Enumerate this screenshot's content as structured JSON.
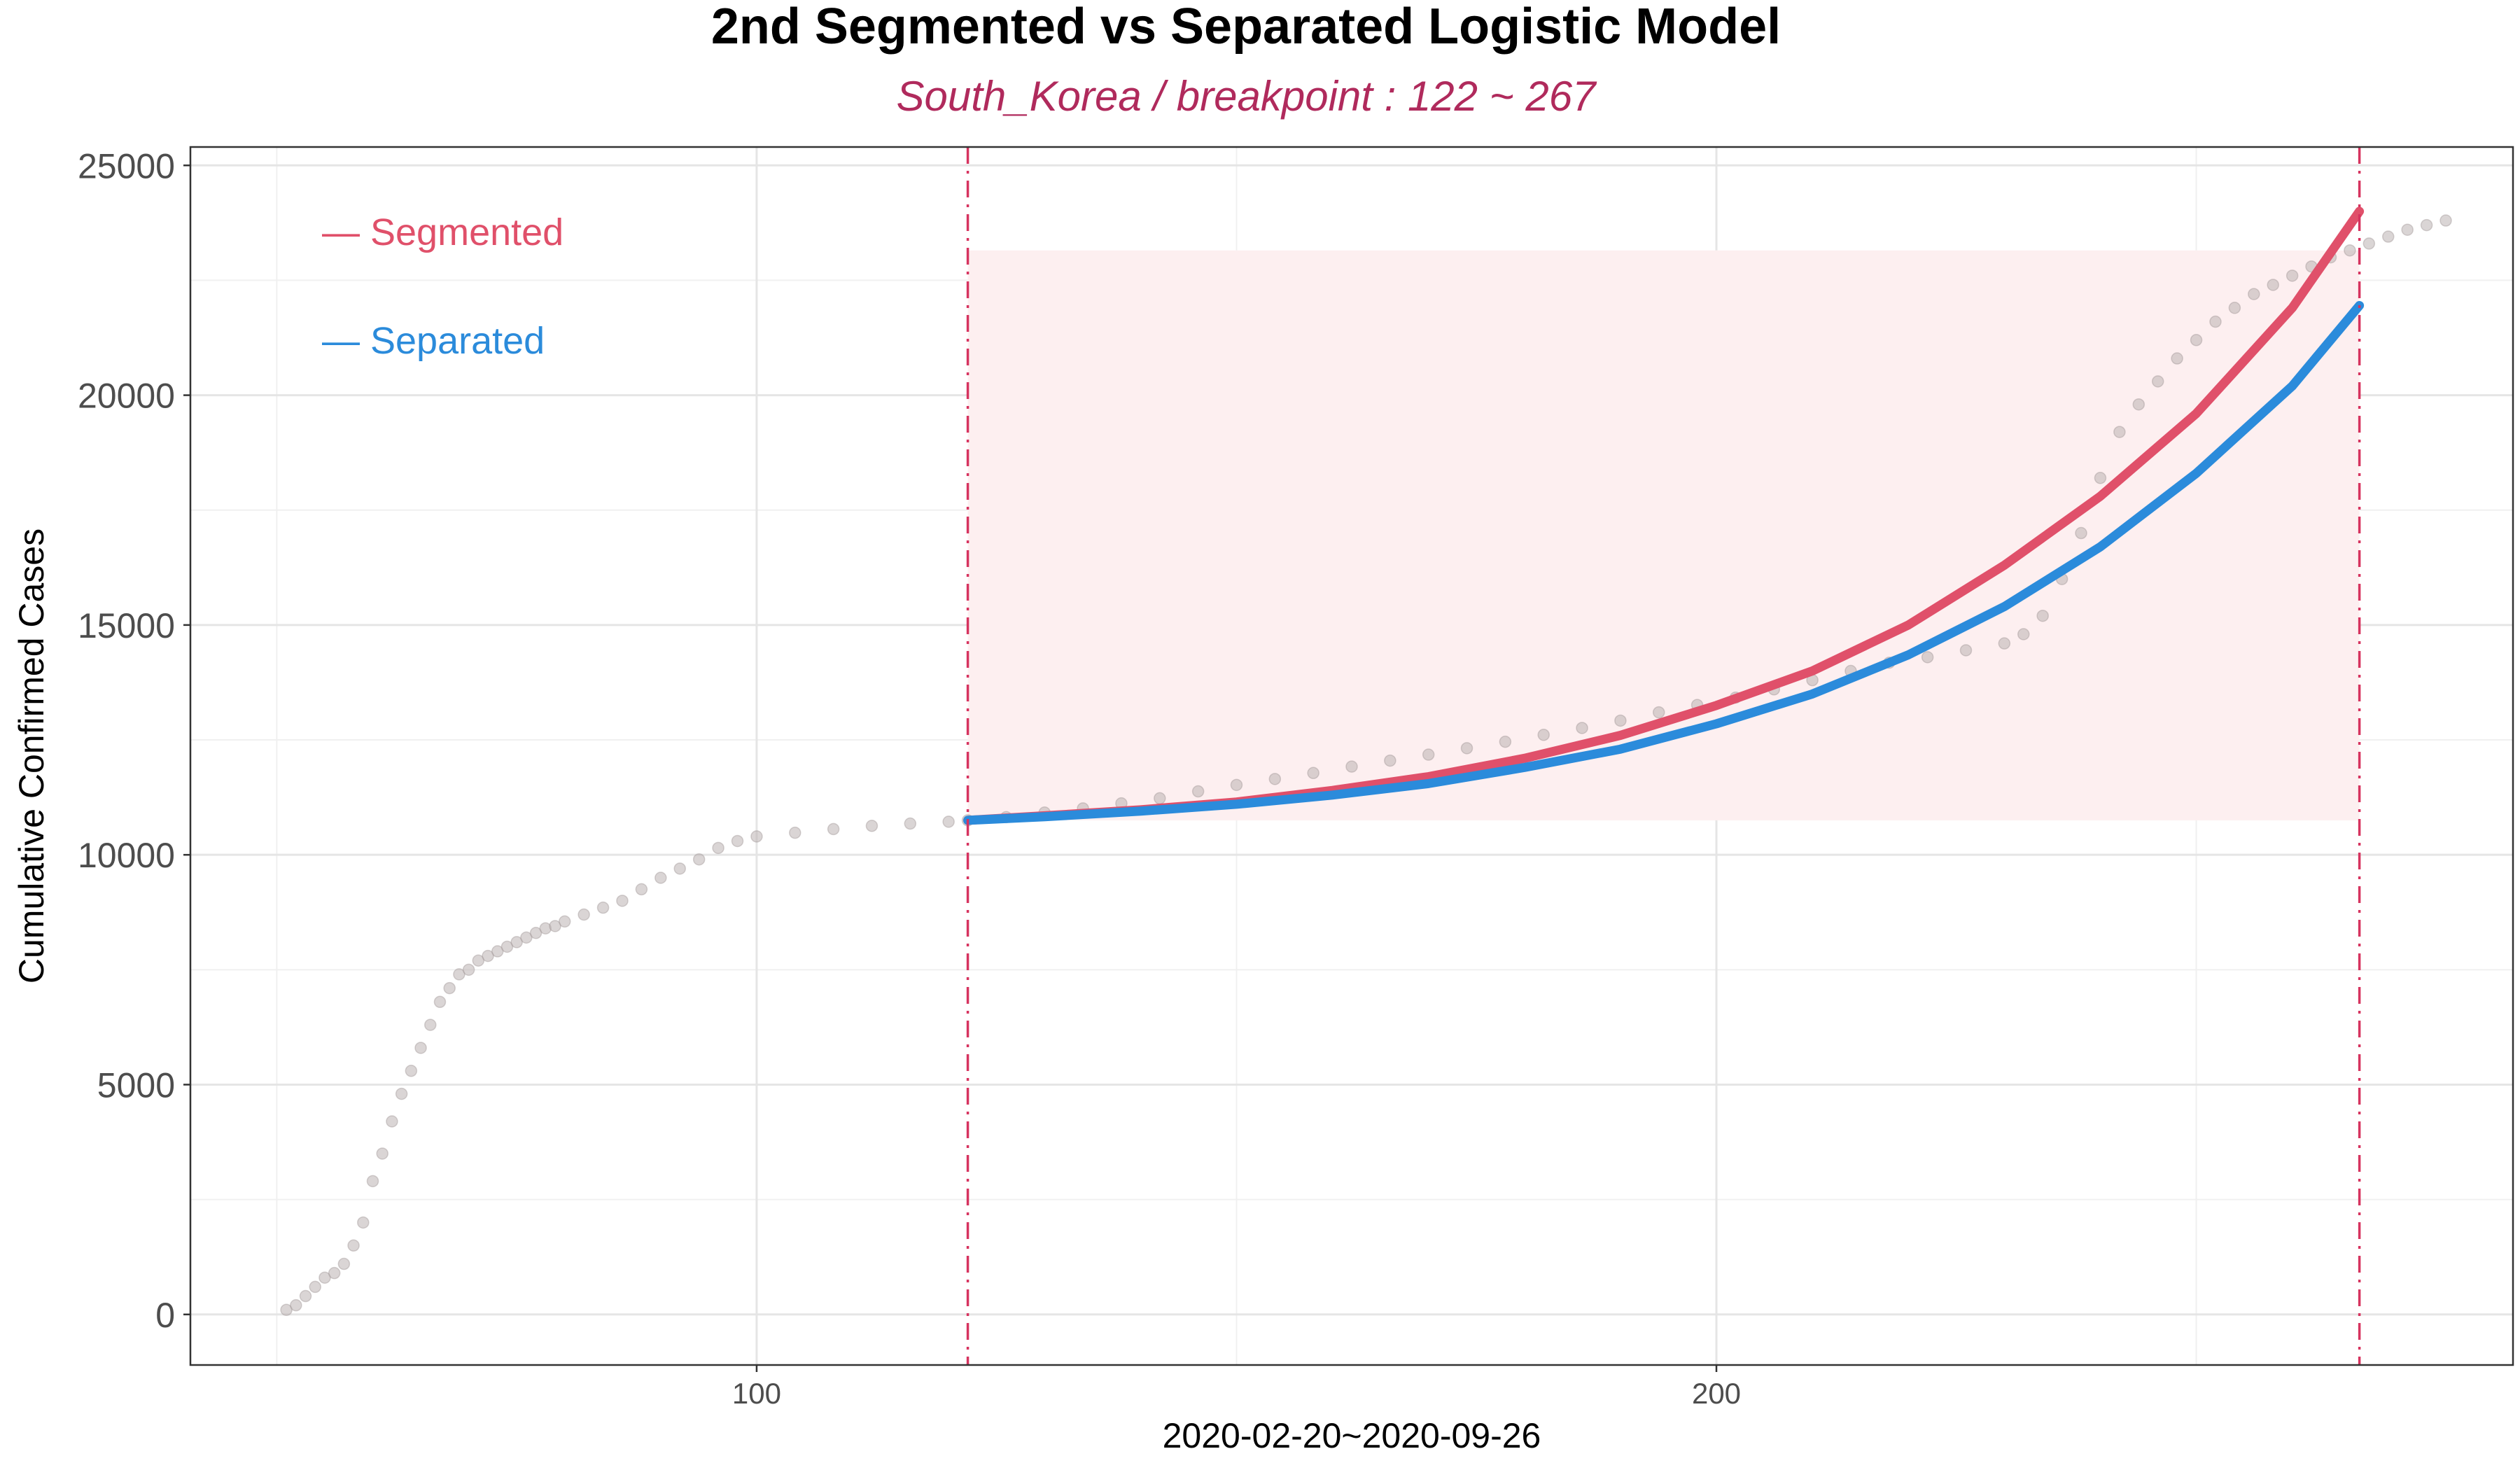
{
  "colors": {
    "segmented": "#E0506A",
    "separated": "#2B8BDB",
    "breakpoint_line": "#D6335F",
    "shade": "#FDEFF0",
    "points": "#BBB3B3",
    "subtitle": "#B02A5C"
  },
  "chart_data": {
    "type": "line",
    "title": "2nd Segmented vs Separated Logistic Model",
    "subtitle": "South_Korea  / breakpoint : 122 ~ 267",
    "xlabel": "2020-02-20~2020-09-26",
    "ylabel": "Cumulative Confirmed Cases",
    "xlim": [
      41,
      283
    ],
    "ylim": [
      -1100,
      25400
    ],
    "x_ticks": [
      100,
      200
    ],
    "y_ticks": [
      0,
      5000,
      10000,
      15000,
      20000,
      25000
    ],
    "breakpoints": [
      122,
      267
    ],
    "shaded_region": {
      "x": [
        122,
        267
      ],
      "y": [
        10750,
        23150
      ]
    },
    "grid": true,
    "legend_position": "top-left",
    "legend": [
      "Segmented",
      "Separated"
    ],
    "observed": {
      "x": [
        51,
        52,
        53,
        54,
        55,
        56,
        57,
        58,
        59,
        60,
        61,
        62,
        63,
        64,
        65,
        66,
        67,
        68,
        69,
        70,
        71,
        72,
        73,
        74,
        75,
        76,
        77,
        78,
        79,
        80,
        82,
        84,
        86,
        88,
        90,
        92,
        94,
        96,
        98,
        100,
        104,
        108,
        112,
        116,
        120,
        122,
        126,
        130,
        134,
        138,
        142,
        146,
        150,
        154,
        158,
        162,
        166,
        170,
        174,
        178,
        182,
        186,
        190,
        194,
        198,
        202,
        206,
        210,
        214,
        218,
        222,
        226,
        230,
        232,
        234,
        236,
        238,
        240,
        242,
        244,
        246,
        248,
        250,
        252,
        254,
        256,
        258,
        260,
        262,
        264,
        266,
        268,
        270,
        272,
        274,
        276
      ],
      "y": [
        100,
        200,
        400,
        600,
        800,
        900,
        1100,
        1500,
        2000,
        2900,
        3500,
        4200,
        4800,
        5300,
        5800,
        6300,
        6800,
        7100,
        7400,
        7500,
        7700,
        7800,
        7900,
        8000,
        8100,
        8200,
        8300,
        8400,
        8450,
        8550,
        8700,
        8850,
        9000,
        9250,
        9500,
        9700,
        9900,
        10150,
        10300,
        10400,
        10480,
        10560,
        10630,
        10680,
        10720,
        10750,
        10820,
        10920,
        11010,
        11120,
        11230,
        11380,
        11520,
        11650,
        11780,
        11920,
        12050,
        12180,
        12320,
        12460,
        12610,
        12760,
        12920,
        13100,
        13260,
        13420,
        13600,
        13800,
        14000,
        14180,
        14300,
        14450,
        14600,
        14800,
        15200,
        16000,
        17000,
        18200,
        19200,
        19800,
        20300,
        20800,
        21200,
        21600,
        21900,
        22200,
        22400,
        22600,
        22800,
        23000,
        23150,
        23300,
        23450,
        23600,
        23700,
        23800
      ]
    },
    "series": [
      {
        "name": "Segmented",
        "x": [
          122,
          130,
          140,
          150,
          160,
          170,
          180,
          190,
          200,
          210,
          220,
          230,
          240,
          250,
          260,
          267
        ],
        "y": [
          10750,
          10850,
          10980,
          11150,
          11400,
          11700,
          12100,
          12600,
          13250,
          14000,
          15000,
          16300,
          17800,
          19600,
          21900,
          24000
        ]
      },
      {
        "name": "Separated",
        "x": [
          122,
          130,
          140,
          150,
          160,
          170,
          180,
          190,
          200,
          210,
          220,
          230,
          240,
          250,
          260,
          267
        ],
        "y": [
          10750,
          10830,
          10950,
          11100,
          11300,
          11550,
          11900,
          12300,
          12850,
          13500,
          14350,
          15400,
          16700,
          18300,
          20200,
          21950
        ]
      }
    ]
  }
}
